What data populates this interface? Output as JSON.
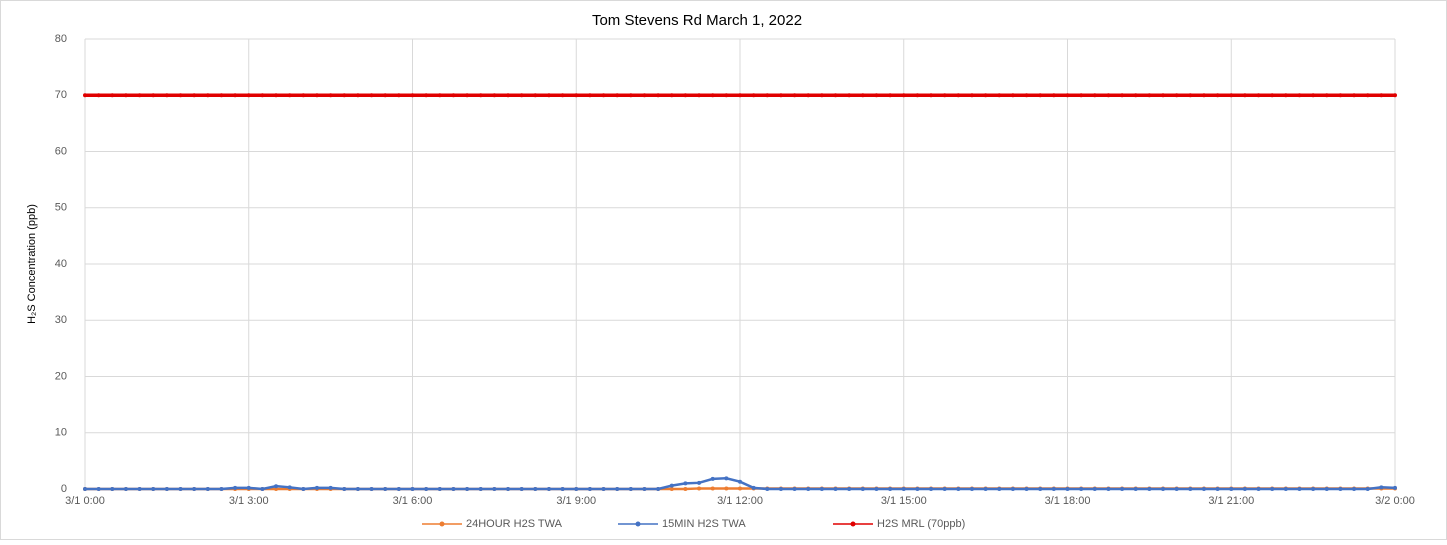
{
  "chart_data": {
    "type": "line",
    "title": "Tom Stevens Rd  March 1, 2022",
    "ylabel": "H₂S Concentration (ppb)",
    "x": [
      0,
      0.25,
      0.5,
      0.75,
      1,
      1.25,
      1.5,
      1.75,
      2,
      2.25,
      2.5,
      2.75,
      3,
      3.25,
      3.5,
      3.75,
      4,
      4.25,
      4.5,
      4.75,
      5,
      5.25,
      5.5,
      5.75,
      6,
      6.25,
      6.5,
      6.75,
      7,
      7.25,
      7.5,
      7.75,
      8,
      8.25,
      8.5,
      8.75,
      9,
      9.25,
      9.5,
      9.75,
      10,
      10.25,
      10.5,
      10.75,
      11,
      11.25,
      11.5,
      11.75,
      12,
      12.25,
      12.5,
      12.75,
      13,
      13.25,
      13.5,
      13.75,
      14,
      14.25,
      14.5,
      14.75,
      15,
      15.25,
      15.5,
      15.75,
      16,
      16.25,
      16.5,
      16.75,
      17,
      17.25,
      17.5,
      17.75,
      18,
      18.25,
      18.5,
      18.75,
      19,
      19.25,
      19.5,
      19.75,
      20,
      20.25,
      20.5,
      20.75,
      21,
      21.25,
      21.5,
      21.75,
      22,
      22.25,
      22.5,
      22.75,
      23,
      23.25,
      23.5,
      23.75,
      24
    ],
    "series": [
      {
        "name": "24HOUR H2S TWA",
        "color": "#ed7d31",
        "values": [
          0,
          0,
          0,
          0,
          0,
          0,
          0,
          0,
          0,
          0,
          0,
          0,
          0,
          0,
          0,
          0,
          0,
          0,
          0,
          0,
          0,
          0,
          0,
          0,
          0,
          0,
          0,
          0,
          0,
          0,
          0,
          0,
          0,
          0,
          0,
          0,
          0,
          0,
          0,
          0,
          0,
          0,
          0,
          0,
          0,
          0.1,
          0.1,
          0.1,
          0.1,
          0.1,
          0.1,
          0.1,
          0.1,
          0.1,
          0.1,
          0.1,
          0.1,
          0.1,
          0.1,
          0.1,
          0.1,
          0.1,
          0.1,
          0.1,
          0.1,
          0.1,
          0.1,
          0.1,
          0.1,
          0.1,
          0.1,
          0.1,
          0.1,
          0.1,
          0.1,
          0.1,
          0.1,
          0.1,
          0.1,
          0.1,
          0.1,
          0.1,
          0.1,
          0.1,
          0.1,
          0.1,
          0.1,
          0.1,
          0.1,
          0.1,
          0.1,
          0.1,
          0.1,
          0.1,
          0.1,
          0.1,
          0.1
        ]
      },
      {
        "name": "15MIN H2S TWA",
        "color": "#4472c4",
        "values": [
          0,
          0,
          0,
          0,
          0,
          0,
          0,
          0,
          0,
          0,
          0,
          0.2,
          0.2,
          0,
          0.5,
          0.3,
          0,
          0.2,
          0.2,
          0,
          0,
          0,
          0,
          0,
          0,
          0,
          0,
          0,
          0,
          0,
          0,
          0,
          0,
          0,
          0,
          0,
          0,
          0,
          0,
          0,
          0,
          0,
          0,
          0.6,
          1.0,
          1.1,
          1.8,
          1.9,
          1.3,
          0.2,
          0,
          0,
          0,
          0,
          0,
          0,
          0,
          0,
          0,
          0,
          0,
          0,
          0,
          0,
          0,
          0,
          0,
          0,
          0,
          0,
          0,
          0,
          0,
          0,
          0,
          0,
          0,
          0,
          0,
          0,
          0,
          0,
          0,
          0,
          0,
          0,
          0,
          0,
          0,
          0,
          0,
          0,
          0,
          0,
          0,
          0.3,
          0.2
        ]
      },
      {
        "name": "H2S MRL (70ppb)",
        "color": "#e00000",
        "values": [
          70,
          70,
          70,
          70,
          70,
          70,
          70,
          70,
          70,
          70,
          70,
          70,
          70,
          70,
          70,
          70,
          70,
          70,
          70,
          70,
          70,
          70,
          70,
          70,
          70,
          70,
          70,
          70,
          70,
          70,
          70,
          70,
          70,
          70,
          70,
          70,
          70,
          70,
          70,
          70,
          70,
          70,
          70,
          70,
          70,
          70,
          70,
          70,
          70,
          70,
          70,
          70,
          70,
          70,
          70,
          70,
          70,
          70,
          70,
          70,
          70,
          70,
          70,
          70,
          70,
          70,
          70,
          70,
          70,
          70,
          70,
          70,
          70,
          70,
          70,
          70,
          70,
          70,
          70,
          70,
          70,
          70,
          70,
          70,
          70,
          70,
          70,
          70,
          70,
          70,
          70,
          70,
          70,
          70,
          70,
          70,
          70
        ]
      }
    ],
    "xlim": [
      0,
      24
    ],
    "xticks": [
      {
        "value": 0,
        "label": "3/1 0:00"
      },
      {
        "value": 3,
        "label": "3/1 3:00"
      },
      {
        "value": 6,
        "label": "3/1 6:00"
      },
      {
        "value": 9,
        "label": "3/1 9:00"
      },
      {
        "value": 12,
        "label": "3/1 12:00"
      },
      {
        "value": 15,
        "label": "3/1 15:00"
      },
      {
        "value": 18,
        "label": "3/1 18:00"
      },
      {
        "value": 21,
        "label": "3/1 21:00"
      },
      {
        "value": 24,
        "label": "3/2 0:00"
      }
    ],
    "ylim": [
      0,
      80
    ],
    "yticks": [
      0,
      10,
      20,
      30,
      40,
      50,
      60,
      70,
      80
    ],
    "grid": true,
    "legend": "bottom"
  }
}
